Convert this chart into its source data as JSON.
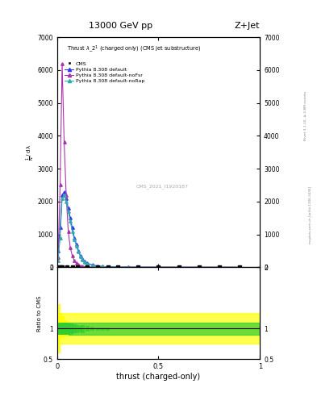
{
  "title_top": "13000 GeV pp",
  "title_right": "Z+Jet",
  "plot_title": "Thrust $\\lambda\\_2^1$ (charged only) (CMS jet substructure)",
  "xlabel": "thrust (charged-only)",
  "ylabel_main": "$\\frac{1}{\\mathrm{N}} \\, / \\, \\mathrm{d}\\lambda$",
  "ylabel_ratio": "Ratio to CMS",
  "watermark": "CMS_2021_I1920187",
  "rivet_text": "Rivet 3.1.10, ≥ 2.8M events",
  "mcplots_text": "mcplots.cern.ch [arXiv:1306.3436]",
  "xlim": [
    0.0,
    1.0
  ],
  "ylim_main": [
    0,
    7000
  ],
  "ylim_ratio": [
    0.5,
    2.0
  ],
  "yticks_main": [
    0,
    1000,
    2000,
    3000,
    4000,
    5000,
    6000,
    7000
  ],
  "ytick_labels_main": [
    "0",
    "1000",
    "2000",
    "3000",
    "4000",
    "5000",
    "6000",
    "7000"
  ],
  "yticks_ratio": [
    0.5,
    1.0,
    2.0
  ],
  "ytick_labels_ratio": [
    "0.5",
    "1",
    "2"
  ],
  "pythia_default_x": [
    0.005,
    0.015,
    0.025,
    0.035,
    0.045,
    0.055,
    0.065,
    0.075,
    0.085,
    0.095,
    0.105,
    0.115,
    0.125,
    0.135,
    0.15,
    0.175,
    0.2,
    0.225,
    0.25,
    0.3,
    0.35,
    0.4,
    0.5,
    0.6,
    0.7,
    0.8,
    0.9
  ],
  "pythia_default_y": [
    500,
    1200,
    2200,
    2300,
    2100,
    1800,
    1500,
    1200,
    900,
    700,
    500,
    350,
    250,
    180,
    120,
    70,
    40,
    25,
    15,
    8,
    4,
    2,
    1,
    0.5,
    0.3,
    0.1,
    0.05
  ],
  "pythia_nofsr_x": [
    0.005,
    0.015,
    0.025,
    0.035,
    0.045,
    0.055,
    0.065,
    0.075,
    0.085,
    0.095,
    0.105,
    0.115,
    0.125,
    0.135,
    0.15,
    0.175,
    0.2,
    0.225,
    0.25,
    0.3,
    0.35,
    0.4,
    0.5,
    0.6,
    0.7,
    0.8,
    0.9
  ],
  "pythia_nofsr_y": [
    300,
    2500,
    6200,
    3800,
    2200,
    1100,
    600,
    350,
    200,
    120,
    75,
    45,
    30,
    20,
    12,
    7,
    4,
    2.5,
    1.5,
    0.8,
    0.4,
    0.2,
    0.1,
    0.05,
    0.02,
    0.01,
    0.005
  ],
  "pythia_norap_x": [
    0.005,
    0.015,
    0.025,
    0.035,
    0.045,
    0.055,
    0.065,
    0.075,
    0.085,
    0.095,
    0.105,
    0.115,
    0.125,
    0.135,
    0.15,
    0.175,
    0.2,
    0.225,
    0.25,
    0.3,
    0.35,
    0.4,
    0.5,
    0.6,
    0.7,
    0.8,
    0.9
  ],
  "pythia_norap_y": [
    200,
    900,
    2100,
    2200,
    2000,
    1700,
    1400,
    1100,
    850,
    650,
    470,
    330,
    235,
    165,
    110,
    65,
    38,
    23,
    14,
    7,
    3.5,
    1.8,
    0.8,
    0.4,
    0.2,
    0.1,
    0.05
  ],
  "cms_x": [
    0.005,
    0.015,
    0.025,
    0.05,
    0.075,
    0.1,
    0.15,
    0.2,
    0.25,
    0.3,
    0.4,
    0.5,
    0.6,
    0.7,
    0.8,
    0.9
  ],
  "color_default": "#3333ff",
  "color_nofsr": "#aa33aa",
  "color_norap": "#33aaaa",
  "color_cms": "#000000",
  "ratio_green_lo": 0.9,
  "ratio_green_hi": 1.1,
  "ratio_yellow_lo": 0.75,
  "ratio_yellow_hi": 1.25,
  "noisy_x": [
    0.005,
    0.015,
    0.025,
    0.035,
    0.045,
    0.055,
    0.065,
    0.075,
    0.085,
    0.1,
    0.115,
    0.125,
    0.15,
    0.175,
    0.2,
    0.225,
    0.25
  ],
  "noisy_lo": [
    0.6,
    0.85,
    0.85,
    0.9,
    0.88,
    0.9,
    0.9,
    0.91,
    0.92,
    0.93,
    0.94,
    0.93,
    0.95,
    0.96,
    0.97,
    0.97,
    0.97
  ],
  "noisy_hi": [
    1.4,
    1.25,
    1.2,
    1.14,
    1.12,
    1.1,
    1.09,
    1.08,
    1.07,
    1.06,
    1.05,
    1.06,
    1.05,
    1.03,
    1.02,
    1.02,
    1.02
  ],
  "bg_color": "#ffffff"
}
